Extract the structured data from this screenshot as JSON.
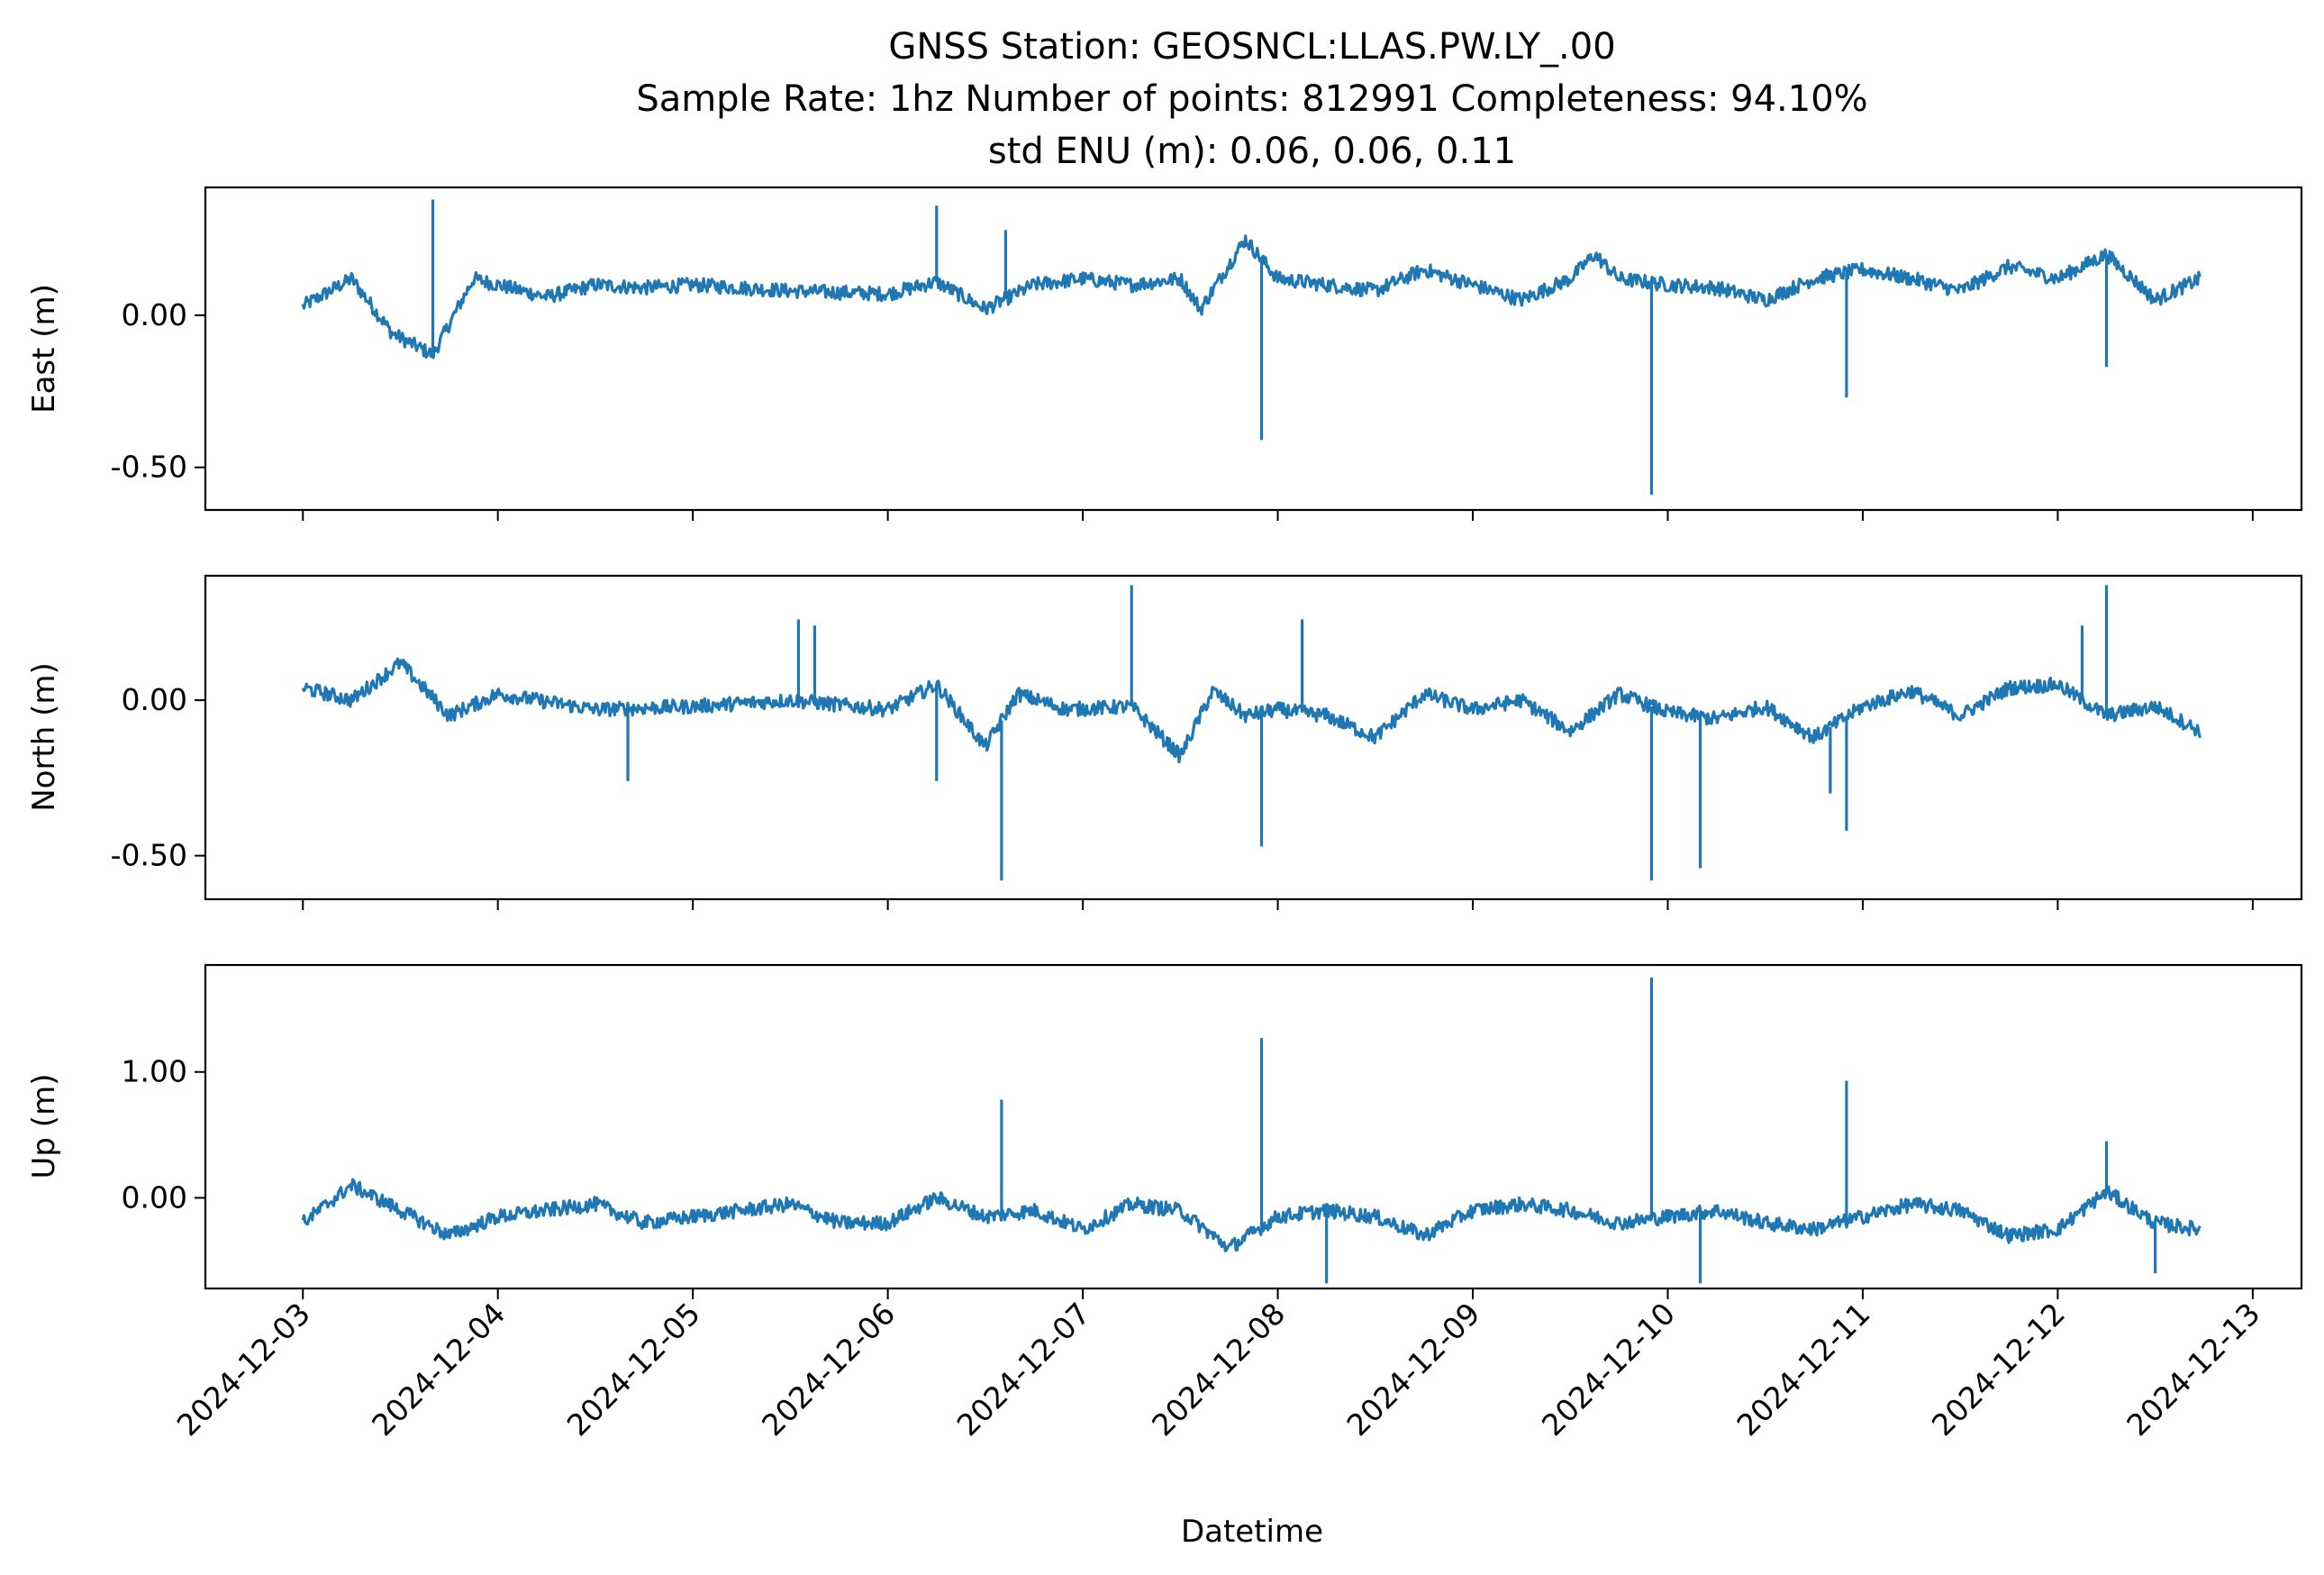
{
  "title_lines": [
    "GNSS Station: GEOSNCL:LLAS.PW.LY_.00",
    "Sample Rate: 1hz   Number of points: 812991    Completeness:  94.10%",
    "std ENU (m):  0.06, 0.06, 0.11"
  ],
  "chart_data": {
    "type": "line",
    "line_color": "#1f77b4",
    "xlabel": "Datetime",
    "x_ticks": [
      "2024-12-03",
      "2024-12-04",
      "2024-12-05",
      "2024-12-06",
      "2024-12-07",
      "2024-12-08",
      "2024-12-09",
      "2024-12-10",
      "2024-12-11",
      "2024-12-12",
      "2024-12-13"
    ],
    "x_range": [
      "2024-12-02 12:00",
      "2024-12-13 06:00"
    ],
    "data_span": [
      "2024-12-03 00:00",
      "2024-12-12 17:30"
    ],
    "panels": [
      {
        "ylabel": "East (m)",
        "ylim": [
          -0.64,
          0.42
        ],
        "y_ticks": [
          0.0,
          -0.5
        ],
        "y_tick_labels": [
          "0.00",
          "-0.50"
        ],
        "series": {
          "x": [
            "2024-12-03 00:00",
            "2024-12-03 06:00",
            "2024-12-03 11:00",
            "2024-12-03 16:00",
            "2024-12-03 21:00",
            "2024-12-04 06:00",
            "2024-12-04 12:00",
            "2024-12-04 18:00",
            "2024-12-05 00:00",
            "2024-12-05 12:00",
            "2024-12-06 00:00",
            "2024-12-06 06:00",
            "2024-12-06 12:00",
            "2024-12-06 18:00",
            "2024-12-07 00:00",
            "2024-12-07 06:00",
            "2024-12-07 12:00",
            "2024-12-07 14:30",
            "2024-12-07 20:00",
            "2024-12-08 00:00",
            "2024-12-08 06:00",
            "2024-12-08 12:00",
            "2024-12-08 18:00",
            "2024-12-09 00:00",
            "2024-12-09 06:00",
            "2024-12-09 12:00",
            "2024-12-09 15:00",
            "2024-12-09 18:00",
            "2024-12-10 00:00",
            "2024-12-10 06:00",
            "2024-12-10 12:00",
            "2024-12-10 18:00",
            "2024-12-11 00:00",
            "2024-12-11 06:00",
            "2024-12-11 12:00",
            "2024-12-11 18:00",
            "2024-12-12 00:00",
            "2024-12-12 06:00",
            "2024-12-12 12:00",
            "2024-12-12 17:30"
          ],
          "y": [
            0.03,
            0.12,
            -0.06,
            -0.13,
            0.12,
            0.06,
            0.1,
            0.09,
            0.1,
            0.08,
            0.07,
            0.11,
            0.02,
            0.1,
            0.12,
            0.1,
            0.12,
            0.02,
            0.25,
            0.12,
            0.1,
            0.08,
            0.15,
            0.1,
            0.05,
            0.12,
            0.2,
            0.12,
            0.1,
            0.09,
            0.05,
            0.12,
            0.15,
            0.12,
            0.08,
            0.16,
            0.12,
            0.2,
            0.05,
            0.12
          ]
        },
        "spikes": [
          {
            "x": "2024-12-03 16:00",
            "y": 0.38
          },
          {
            "x": "2024-12-06 06:00",
            "y": 0.36
          },
          {
            "x": "2024-12-06 14:30",
            "y": 0.28
          },
          {
            "x": "2024-12-07 22:00",
            "y": -0.41
          },
          {
            "x": "2024-12-09 22:00",
            "y": -0.59
          },
          {
            "x": "2024-12-10 22:00",
            "y": -0.27
          },
          {
            "x": "2024-12-12 06:00",
            "y": -0.17
          }
        ]
      },
      {
        "ylabel": "North (m)",
        "ylim": [
          -0.64,
          0.4
        ],
        "y_ticks": [
          0.0,
          -0.5
        ],
        "y_tick_labels": [
          "0.00",
          "-0.50"
        ],
        "series": {
          "x": [
            "2024-12-03 00:00",
            "2024-12-03 06:00",
            "2024-12-03 12:00",
            "2024-12-03 18:00",
            "2024-12-04 00:00",
            "2024-12-04 12:00",
            "2024-12-05 00:00",
            "2024-12-05 12:00",
            "2024-12-06 00:00",
            "2024-12-06 06:00",
            "2024-12-06 12:00",
            "2024-12-06 16:00",
            "2024-12-06 22:00",
            "2024-12-07 06:00",
            "2024-12-07 12:00",
            "2024-12-07 16:00",
            "2024-12-07 20:00",
            "2024-12-08 00:00",
            "2024-12-08 06:00",
            "2024-12-08 12:00",
            "2024-12-08 18:00",
            "2024-12-09 00:00",
            "2024-12-09 06:00",
            "2024-12-09 12:00",
            "2024-12-09 18:00",
            "2024-12-10 00:00",
            "2024-12-10 06:00",
            "2024-12-10 12:00",
            "2024-12-10 18:00",
            "2024-12-11 00:00",
            "2024-12-11 06:00",
            "2024-12-11 12:00",
            "2024-12-11 18:00",
            "2024-12-12 00:00",
            "2024-12-12 06:00",
            "2024-12-12 12:00",
            "2024-12-12 17:30"
          ],
          "y": [
            0.04,
            0.0,
            0.12,
            -0.05,
            0.02,
            -0.03,
            -0.02,
            0.0,
            -0.03,
            0.05,
            -0.15,
            0.02,
            -0.03,
            -0.02,
            -0.18,
            0.03,
            -0.05,
            -0.03,
            -0.05,
            -0.12,
            0.02,
            -0.03,
            0.0,
            -0.1,
            0.02,
            -0.04,
            -0.06,
            -0.02,
            -0.12,
            -0.02,
            0.03,
            -0.05,
            0.04,
            0.05,
            -0.05,
            -0.02,
            -0.1
          ]
        },
        "spikes": [
          {
            "x": "2024-12-04 16:00",
            "y": -0.26
          },
          {
            "x": "2024-12-05 13:00",
            "y": 0.26
          },
          {
            "x": "2024-12-05 15:00",
            "y": 0.24
          },
          {
            "x": "2024-12-06 06:00",
            "y": -0.26
          },
          {
            "x": "2024-12-06 14:00",
            "y": -0.58
          },
          {
            "x": "2024-12-07 06:00",
            "y": 0.37
          },
          {
            "x": "2024-12-07 22:00",
            "y": -0.47
          },
          {
            "x": "2024-12-08 03:00",
            "y": 0.26
          },
          {
            "x": "2024-12-09 22:00",
            "y": -0.58
          },
          {
            "x": "2024-12-10 04:00",
            "y": -0.54
          },
          {
            "x": "2024-12-10 20:00",
            "y": -0.3
          },
          {
            "x": "2024-12-10 22:00",
            "y": -0.42
          },
          {
            "x": "2024-12-12 03:00",
            "y": 0.24
          },
          {
            "x": "2024-12-12 06:00",
            "y": 0.37
          }
        ]
      },
      {
        "ylabel": "Up (m)",
        "ylim": [
          -0.72,
          1.85
        ],
        "y_ticks": [
          1.0,
          0.0
        ],
        "y_tick_labels": [
          "1.00",
          "0.00"
        ],
        "series": {
          "x": [
            "2024-12-03 00:00",
            "2024-12-03 06:00",
            "2024-12-03 12:00",
            "2024-12-03 18:00",
            "2024-12-04 00:00",
            "2024-12-04 06:00",
            "2024-12-04 12:00",
            "2024-12-04 18:00",
            "2024-12-05 00:00",
            "2024-12-05 06:00",
            "2024-12-05 12:00",
            "2024-12-05 18:00",
            "2024-12-06 00:00",
            "2024-12-06 06:00",
            "2024-12-06 12:00",
            "2024-12-06 18:00",
            "2024-12-07 00:00",
            "2024-12-07 06:00",
            "2024-12-07 12:00",
            "2024-12-07 18:00",
            "2024-12-08 00:00",
            "2024-12-08 06:00",
            "2024-12-08 12:00",
            "2024-12-08 18:00",
            "2024-12-09 00:00",
            "2024-12-09 06:00",
            "2024-12-09 12:00",
            "2024-12-09 18:00",
            "2024-12-10 00:00",
            "2024-12-10 06:00",
            "2024-12-10 12:00",
            "2024-12-10 18:00",
            "2024-12-11 00:00",
            "2024-12-11 06:00",
            "2024-12-11 12:00",
            "2024-12-11 18:00",
            "2024-12-12 00:00",
            "2024-12-12 06:00",
            "2024-12-12 12:00",
            "2024-12-12 17:30"
          ],
          "y": [
            -0.2,
            0.1,
            -0.1,
            -0.3,
            -0.15,
            -0.1,
            -0.05,
            -0.2,
            -0.15,
            -0.1,
            -0.05,
            -0.2,
            -0.2,
            0.0,
            -0.15,
            -0.1,
            -0.25,
            -0.05,
            -0.1,
            -0.4,
            -0.15,
            -0.1,
            -0.15,
            -0.3,
            -0.1,
            -0.05,
            -0.1,
            -0.2,
            -0.15,
            -0.1,
            -0.2,
            -0.25,
            -0.15,
            -0.05,
            -0.1,
            -0.3,
            -0.25,
            0.05,
            -0.2,
            -0.25
          ]
        },
        "spikes": [
          {
            "x": "2024-12-06 14:00",
            "y": 0.78
          },
          {
            "x": "2024-12-07 22:00",
            "y": 1.27
          },
          {
            "x": "2024-12-08 06:00",
            "y": -0.68
          },
          {
            "x": "2024-12-09 22:00",
            "y": 1.75
          },
          {
            "x": "2024-12-10 04:00",
            "y": -0.68
          },
          {
            "x": "2024-12-10 22:00",
            "y": 0.93
          },
          {
            "x": "2024-12-12 06:00",
            "y": 0.45
          },
          {
            "x": "2024-12-12 12:00",
            "y": -0.6
          }
        ]
      }
    ]
  }
}
